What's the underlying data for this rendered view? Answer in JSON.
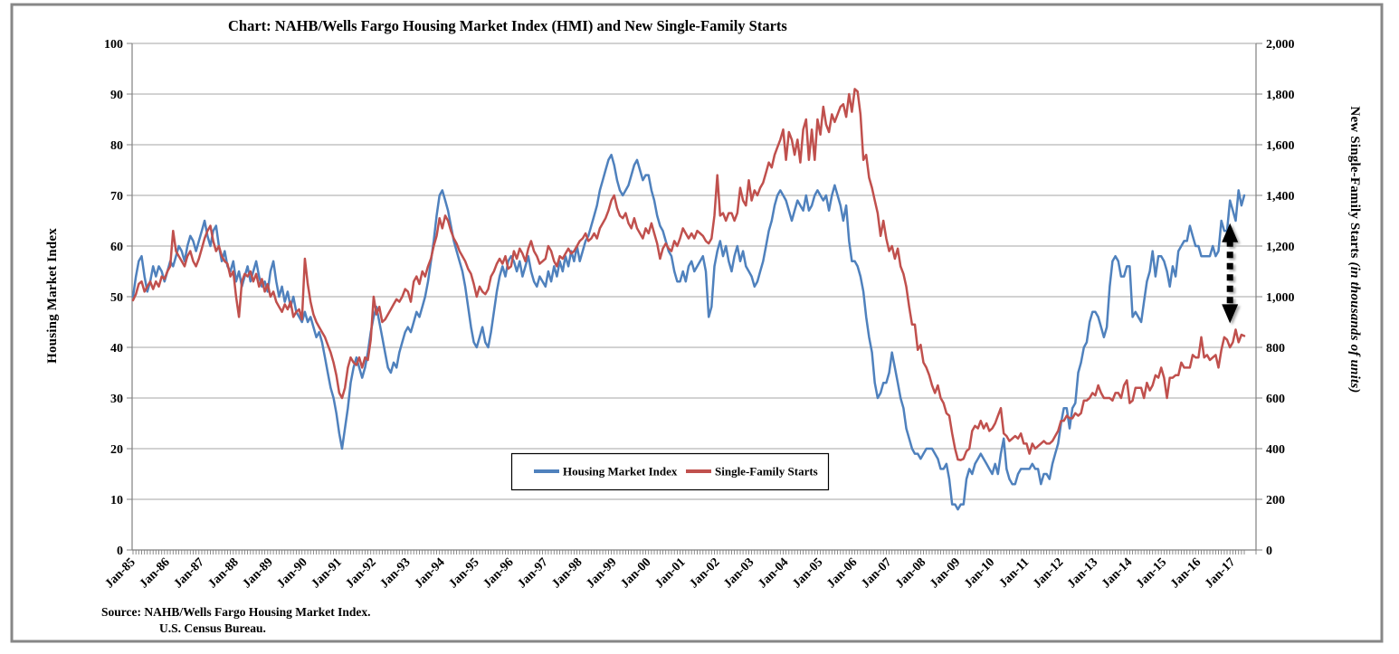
{
  "figure": {
    "title": "Chart:  NAHB/Wells Fargo Housing Market Index (HMI) and New Single-Family Starts",
    "source_line1": "Source: NAHB/Wells Fargo Housing Market Index.",
    "source_line2": "U.S. Census Bureau."
  },
  "chart_data": {
    "type": "line",
    "title": "Chart:  NAHB/Wells Fargo Housing Market Index (HMI) and New Single-Family Starts",
    "grid": "horizontal",
    "legend_position": "inside-bottom-center-box",
    "x_axis": {
      "frequency": "monthly",
      "start": "Jan-85",
      "end": "May-17",
      "tick_labels": [
        "Jan-85",
        "Jan-86",
        "Jan-87",
        "Jan-88",
        "Jan-89",
        "Jan-90",
        "Jan-91",
        "Jan-92",
        "Jan-93",
        "Jan-94",
        "Jan-95",
        "Jan-96",
        "Jan-97",
        "Jan-98",
        "Jan-99",
        "Jan-00",
        "Jan-01",
        "Jan-02",
        "Jan-03",
        "Jan-04",
        "Jan-05",
        "Jan-06",
        "Jan-07",
        "Jan-08",
        "Jan-09",
        "Jan-10",
        "Jan-11",
        "Jan-12",
        "Jan-13",
        "Jan-14",
        "Jan-15",
        "Jan-16",
        "Jan-17"
      ]
    },
    "left_axis": {
      "label": "Housing Market Index",
      "min": 0,
      "max": 100,
      "step": 10
    },
    "right_axis": {
      "label_main": "New Single-Family Starts ",
      "label_italic": "(in thousands of units)",
      "min": 0,
      "max": 2000,
      "step": 200
    },
    "series": [
      {
        "name": "Housing Market Index",
        "axis": "left",
        "color": "#4F81BD",
        "values": [
          50,
          54,
          57,
          58,
          54,
          51,
          53,
          56,
          54,
          56,
          55,
          53,
          55,
          57,
          56,
          58,
          60,
          59,
          57,
          60,
          62,
          61,
          59,
          61,
          63,
          65,
          62,
          60,
          63,
          64,
          60,
          57,
          59,
          56,
          55,
          57,
          53,
          55,
          52,
          54,
          56,
          53,
          55,
          57,
          54,
          52,
          53,
          51,
          55,
          57,
          53,
          50,
          52,
          49,
          51,
          48,
          50,
          47,
          46,
          45,
          47,
          45,
          46,
          44,
          42,
          43,
          41,
          38,
          35,
          32,
          30,
          27,
          23,
          20,
          24,
          28,
          33,
          36,
          38,
          36,
          34,
          36,
          39,
          43,
          46,
          48,
          45,
          42,
          39,
          36,
          35,
          37,
          36,
          39,
          41,
          43,
          44,
          43,
          45,
          47,
          46,
          48,
          50,
          53,
          57,
          61,
          66,
          70,
          71,
          69,
          67,
          64,
          61,
          59,
          57,
          55,
          52,
          48,
          44,
          41,
          40,
          42,
          44,
          41,
          40,
          43,
          47,
          51,
          54,
          56,
          54,
          57,
          58,
          57,
          55,
          57,
          54,
          56,
          58,
          55,
          53,
          52,
          54,
          53,
          52,
          55,
          53,
          56,
          54,
          57,
          55,
          58,
          56,
          59,
          57,
          60,
          57,
          59,
          61,
          62,
          64,
          66,
          68,
          71,
          73,
          75,
          77,
          78,
          76,
          73,
          71,
          70,
          71,
          72,
          74,
          76,
          77,
          75,
          73,
          74,
          74,
          71,
          69,
          66,
          64,
          63,
          61,
          59,
          58,
          55,
          53,
          53,
          55,
          53,
          56,
          57,
          55,
          56,
          57,
          58,
          55,
          46,
          48,
          56,
          59,
          61,
          58,
          60,
          57,
          55,
          58,
          60,
          57,
          59,
          56,
          55,
          54,
          52,
          53,
          55,
          57,
          60,
          63,
          65,
          68,
          70,
          71,
          70,
          69,
          67,
          65,
          67,
          69,
          68,
          67,
          70,
          67,
          68,
          70,
          71,
          70,
          69,
          70,
          67,
          70,
          72,
          70,
          68,
          65,
          68,
          61,
          57,
          57,
          56,
          54,
          51,
          46,
          42,
          39,
          33,
          30,
          31,
          33,
          33,
          35,
          39,
          36,
          33,
          30,
          28,
          24,
          22,
          20,
          19,
          19,
          18,
          19,
          20,
          20,
          20,
          19,
          18,
          16,
          16,
          17,
          14,
          9,
          9,
          8,
          9,
          9,
          14,
          16,
          15,
          17,
          18,
          19,
          18,
          17,
          16,
          15,
          17,
          15,
          19,
          22,
          16,
          14,
          13,
          13,
          15,
          16,
          16,
          16,
          16,
          17,
          16,
          16,
          13,
          15,
          15,
          14,
          17,
          19,
          21,
          25,
          28,
          28,
          24,
          28,
          29,
          35,
          37,
          40,
          41,
          45,
          47,
          47,
          46,
          44,
          42,
          44,
          52,
          57,
          58,
          57,
          54,
          54,
          56,
          56,
          46,
          47,
          46,
          45,
          49,
          53,
          55,
          59,
          54,
          58,
          58,
          57,
          55,
          52,
          56,
          54,
          59,
          60,
          61,
          61,
          64,
          62,
          60,
          60,
          58,
          58,
          58,
          58,
          60,
          58,
          59,
          65,
          63,
          63,
          69,
          67,
          65,
          71,
          68,
          70
        ]
      },
      {
        "name": "Single-Family Starts",
        "axis": "right",
        "color": "#C0504D",
        "values": [
          986,
          1010,
          1050,
          1060,
          1020,
          1040,
          1060,
          1030,
          1060,
          1040,
          1080,
          1070,
          1100,
          1120,
          1260,
          1180,
          1160,
          1140,
          1120,
          1160,
          1180,
          1140,
          1120,
          1150,
          1190,
          1230,
          1260,
          1280,
          1220,
          1180,
          1200,
          1160,
          1140,
          1130,
          1080,
          1100,
          1000,
          920,
          1060,
          1090,
          1080,
          1100,
          1060,
          1090,
          1040,
          1070,
          1020,
          1050,
          1000,
          1020,
          980,
          960,
          940,
          970,
          950,
          980,
          920,
          940,
          950,
          910,
          1150,
          1050,
          980,
          930,
          900,
          880,
          860,
          840,
          810,
          780,
          740,
          690,
          620,
          600,
          640,
          720,
          760,
          740,
          730,
          760,
          720,
          760,
          750,
          830,
          1000,
          930,
          960,
          900,
          910,
          930,
          950,
          970,
          990,
          980,
          1000,
          1030,
          1020,
          980,
          1060,
          1080,
          1050,
          1100,
          1080,
          1120,
          1150,
          1200,
          1240,
          1310,
          1270,
          1320,
          1300,
          1260,
          1230,
          1210,
          1180,
          1160,
          1140,
          1110,
          1090,
          1050,
          1000,
          1040,
          1020,
          1010,
          1030,
          1080,
          1100,
          1130,
          1150,
          1130,
          1160,
          1110,
          1120,
          1180,
          1150,
          1190,
          1170,
          1140,
          1190,
          1220,
          1180,
          1160,
          1130,
          1140,
          1150,
          1200,
          1180,
          1140,
          1120,
          1160,
          1150,
          1170,
          1190,
          1170,
          1180,
          1200,
          1220,
          1230,
          1250,
          1220,
          1230,
          1250,
          1230,
          1270,
          1290,
          1310,
          1340,
          1380,
          1400,
          1350,
          1320,
          1310,
          1330,
          1290,
          1270,
          1310,
          1270,
          1250,
          1230,
          1270,
          1250,
          1290,
          1250,
          1210,
          1150,
          1190,
          1210,
          1190,
          1180,
          1220,
          1200,
          1230,
          1270,
          1250,
          1230,
          1250,
          1230,
          1260,
          1250,
          1240,
          1220,
          1210,
          1230,
          1320,
          1480,
          1320,
          1330,
          1300,
          1330,
          1330,
          1300,
          1330,
          1430,
          1380,
          1360,
          1460,
          1380,
          1420,
          1400,
          1430,
          1450,
          1490,
          1530,
          1510,
          1560,
          1590,
          1620,
          1660,
          1540,
          1650,
          1620,
          1560,
          1620,
          1530,
          1660,
          1700,
          1540,
          1660,
          1540,
          1700,
          1640,
          1750,
          1680,
          1650,
          1720,
          1690,
          1720,
          1750,
          1760,
          1710,
          1800,
          1730,
          1820,
          1810,
          1720,
          1540,
          1560,
          1470,
          1430,
          1380,
          1330,
          1240,
          1300,
          1230,
          1180,
          1200,
          1150,
          1190,
          1120,
          1090,
          1040,
          960,
          890,
          890,
          790,
          810,
          740,
          720,
          690,
          650,
          620,
          650,
          600,
          580,
          540,
          530,
          460,
          400,
          357,
          355,
          360,
          390,
          400,
          470,
          490,
          480,
          510,
          480,
          500,
          470,
          480,
          500,
          530,
          560,
          460,
          450,
          430,
          440,
          450,
          440,
          460,
          420,
          420,
          380,
          420,
          400,
          410,
          420,
          430,
          420,
          420,
          430,
          450,
          470,
          510,
          510,
          530,
          520,
          520,
          540,
          530,
          540,
          590,
          590,
          600,
          620,
          610,
          650,
          620,
          600,
          600,
          600,
          590,
          620,
          620,
          600,
          650,
          670,
          580,
          590,
          640,
          640,
          640,
          600,
          660,
          630,
          650,
          690,
          680,
          720,
          680,
          600,
          680,
          680,
          690,
          690,
          740,
          720,
          720,
          720,
          770,
          760,
          760,
          840,
          760,
          770,
          750,
          760,
          770,
          720,
          790,
          840,
          830,
          800,
          820,
          870,
          820,
          850,
          845
        ]
      }
    ],
    "annotation_arrow": {
      "description": "black dashed double-headed vertical arrow marking the gap between the two series at the right end",
      "axis": "right",
      "month_index": 383,
      "top_value": 1290,
      "bottom_value": 895
    }
  }
}
